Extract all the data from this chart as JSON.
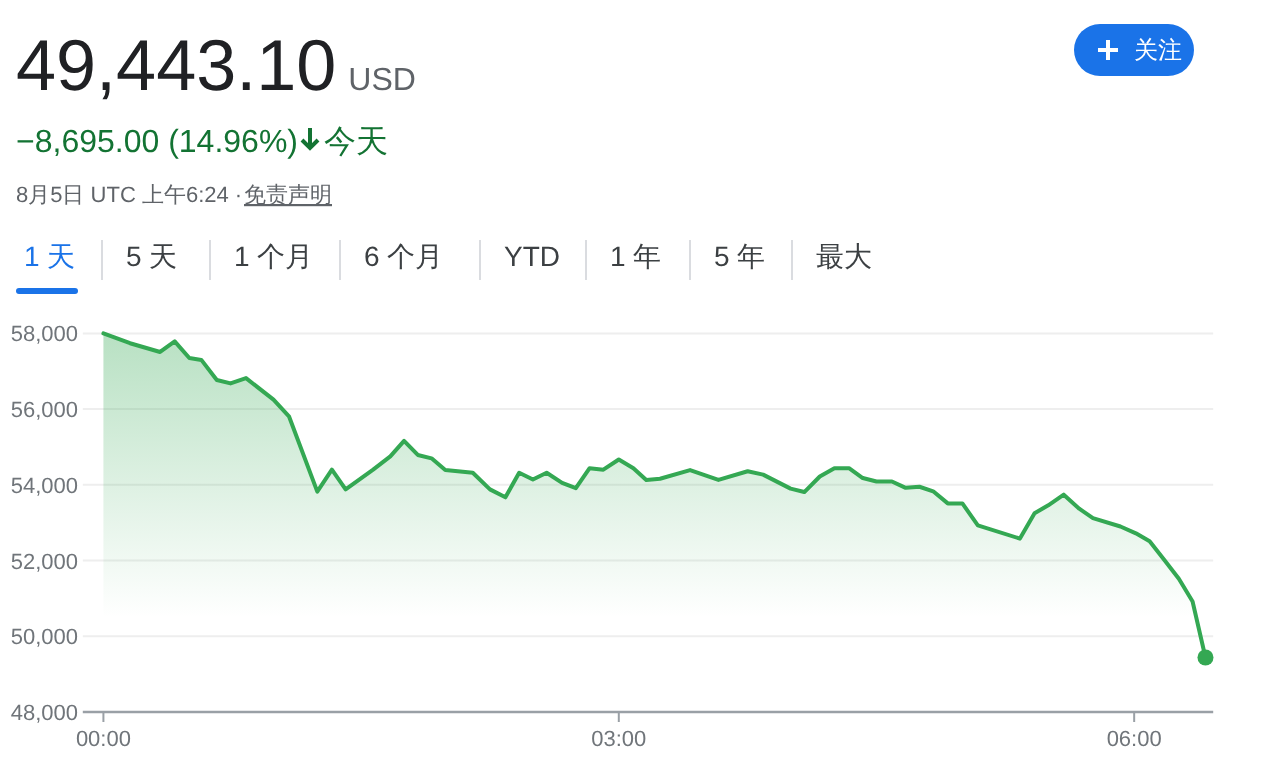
{
  "chart_data": {
    "type": "area",
    "title": "49,443.10",
    "annotations": [
      "USD",
      "−8,695.00 (14.96%)",
      "今天",
      "8月5日 UTC 上午6:24 ·",
      "免责声明",
      "关注",
      "1 天",
      "5 天",
      "1 个月",
      "6 个月",
      "YTD",
      "1 年",
      "5 年",
      "最大"
    ],
    "xlim": [
      -0.12,
      6.46
    ],
    "xticks": [
      {
        "value": 0,
        "label": "00:00"
      },
      {
        "value": 3,
        "label": "03:00"
      },
      {
        "value": 6,
        "label": "06:00"
      }
    ],
    "ylim": [
      48000,
      58000
    ],
    "yticks": [
      {
        "value": 48000,
        "label": "48,000"
      },
      {
        "value": 50000,
        "label": "50,000"
      },
      {
        "value": 52000,
        "label": "52,000"
      },
      {
        "value": 54000,
        "label": "54,000"
      },
      {
        "value": 56000,
        "label": "56,000"
      },
      {
        "value": 58000,
        "label": "58,000"
      }
    ],
    "grid": "y",
    "marker": "none",
    "line_style": "solid",
    "series": [
      {
        "color": "#34a853",
        "x": [
          0,
          0.155,
          0.33,
          0.415,
          0.5,
          0.57,
          0.66,
          0.74,
          0.83,
          0.99,
          1.08,
          1.245,
          1.33,
          1.41,
          1.57,
          1.67,
          1.75,
          1.83,
          1.91,
          1.99,
          2.15,
          2.25,
          2.34,
          2.42,
          2.5,
          2.58,
          2.67,
          2.75,
          2.83,
          2.91,
          3.0,
          3.085,
          3.16,
          3.24,
          3.415,
          3.58,
          3.75,
          3.84,
          4.0,
          4.08,
          4.17,
          4.255,
          4.34,
          4.42,
          4.5,
          4.59,
          4.67,
          4.75,
          4.83,
          4.915,
          5.0,
          5.09,
          5.335,
          5.42,
          5.5,
          5.59,
          5.68,
          5.76,
          5.92,
          6.01,
          6.09,
          6.17,
          6.26,
          6.34,
          6.415
        ],
        "values": [
          58000,
          57740,
          57510,
          57790,
          57350,
          57300,
          56770,
          56680,
          56820,
          56250,
          55810,
          53820,
          54400,
          53880,
          54400,
          54750,
          55160,
          54790,
          54700,
          54390,
          54320,
          53880,
          53670,
          54320,
          54140,
          54320,
          54050,
          53910,
          54440,
          54400,
          54670,
          54440,
          54130,
          54160,
          54390,
          54130,
          54360,
          54270,
          53900,
          53810,
          54220,
          54440,
          54440,
          54180,
          54090,
          54090,
          53920,
          53950,
          53830,
          53510,
          53510,
          52930,
          52580,
          53250,
          53460,
          53740,
          53370,
          53120,
          52900,
          52720,
          52510,
          52050,
          51520,
          50920,
          49440
        ]
      },
      {
        "type": "scatter",
        "color": "#34a853",
        "marker": "circle",
        "x": [
          6.415
        ],
        "values": [
          49440
        ]
      }
    ]
  }
}
